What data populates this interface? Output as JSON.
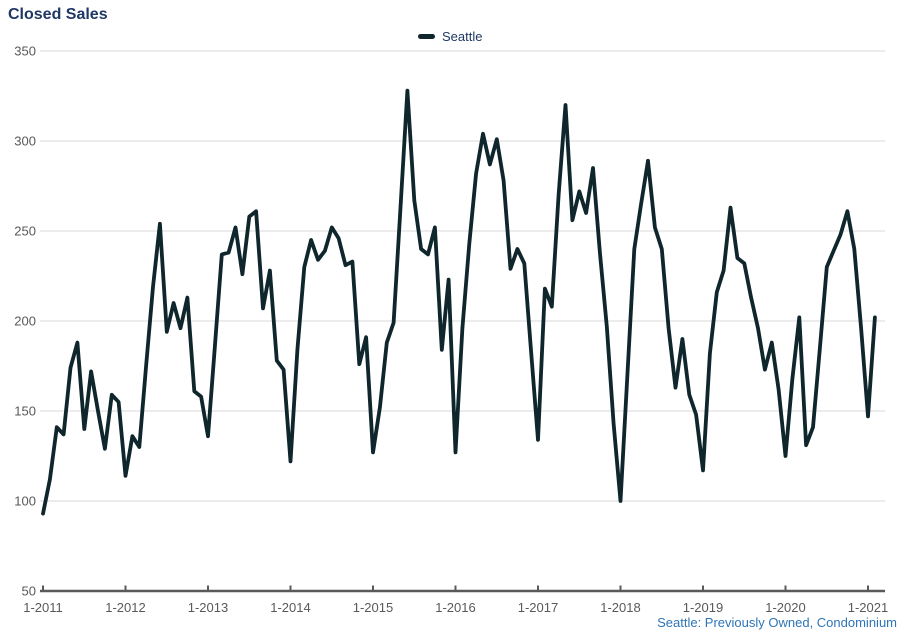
{
  "title": "Closed Sales",
  "legend": {
    "label": "Seattle"
  },
  "caption": "Seattle: Previously Owned, Condominium",
  "colors": {
    "title": "#1f3864",
    "legend_text": "#1f3864",
    "line": "#0f262c",
    "grid": "#d9d9d9",
    "axis": "#595959",
    "tick_text": "#595959",
    "caption": "#2e75b6",
    "background": "#ffffff"
  },
  "chart_data": {
    "type": "line",
    "title": "Closed Sales",
    "frequency": "monthly",
    "start_month": "1-2011",
    "end_month": "2-2021",
    "x_tick_labels": [
      "1-2011",
      "1-2012",
      "1-2013",
      "1-2014",
      "1-2015",
      "1-2016",
      "1-2017",
      "1-2018",
      "1-2019",
      "1-2020",
      "1-2021"
    ],
    "y_ticks": [
      50,
      100,
      150,
      200,
      250,
      300,
      350
    ],
    "ylim": [
      50,
      350
    ],
    "grid": "horizontal",
    "legend_position": "top-center",
    "series": [
      {
        "name": "Seattle",
        "values": [
          93,
          112,
          141,
          137,
          174,
          188,
          140,
          172,
          150,
          129,
          159,
          155,
          114,
          136,
          130,
          175,
          219,
          254,
          194,
          210,
          196,
          213,
          161,
          158,
          136,
          186,
          237,
          238,
          252,
          226,
          258,
          261,
          207,
          228,
          178,
          173,
          122,
          184,
          230,
          245,
          234,
          239,
          252,
          246,
          231,
          233,
          176,
          191,
          127,
          152,
          188,
          199,
          263,
          328,
          267,
          240,
          237,
          252,
          184,
          223,
          127,
          196,
          243,
          282,
          304,
          287,
          301,
          278,
          229,
          240,
          232,
          183,
          134,
          218,
          208,
          270,
          320,
          256,
          272,
          260,
          285,
          238,
          197,
          143,
          100,
          170,
          240,
          265,
          289,
          252,
          240,
          196,
          163,
          190,
          159,
          148,
          117,
          182,
          216,
          228,
          263,
          235,
          232,
          213,
          196,
          173,
          188,
          162,
          125,
          168,
          202,
          131,
          141,
          185,
          230,
          239,
          248,
          261,
          240,
          196,
          147,
          202
        ]
      }
    ]
  }
}
